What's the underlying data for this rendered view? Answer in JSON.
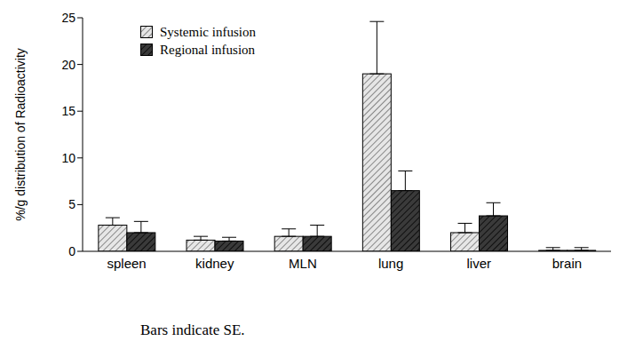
{
  "chart_data": {
    "type": "bar",
    "y_label": "%/g distribution of Radioactivity",
    "caption": "Bars indicate SE.",
    "categories": [
      "spleen",
      "kidney",
      "MLN",
      "lung",
      "liver",
      "brain"
    ],
    "series": [
      {
        "name": "Systemic infusion",
        "color": "#e6e6e6",
        "values": [
          2.8,
          1.2,
          1.6,
          19.0,
          2.0,
          0.1
        ],
        "errors": [
          0.8,
          0.4,
          0.8,
          5.6,
          1.0,
          0.3
        ]
      },
      {
        "name": "Regional infusion",
        "color": "#3a3a3a",
        "values": [
          2.0,
          1.1,
          1.6,
          6.5,
          3.8,
          0.1
        ],
        "errors": [
          1.2,
          0.4,
          1.2,
          2.1,
          1.4,
          0.3
        ]
      }
    ],
    "ylim": [
      0,
      25
    ],
    "yticks": [
      0,
      5,
      10,
      15,
      20,
      25
    ],
    "legend": "upper left",
    "grid": false
  }
}
